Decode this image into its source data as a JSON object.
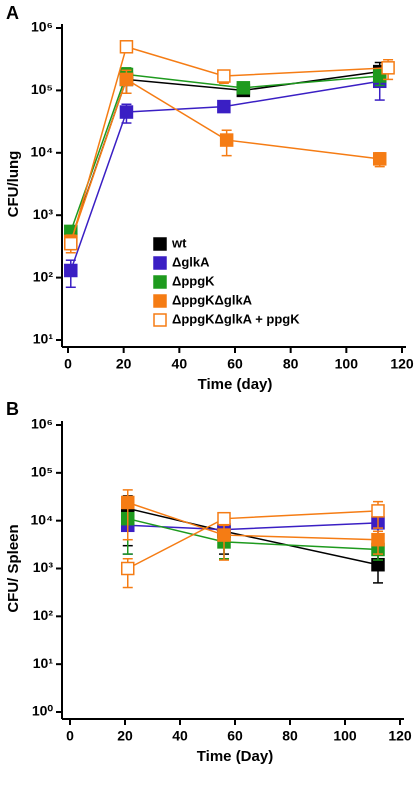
{
  "charts": [
    {
      "type": "line",
      "panel": "A",
      "ylog": true,
      "xlabel": "Time (day)",
      "ylabel": "CFU/lung",
      "xlim": [
        0,
        120
      ],
      "xticks": [
        0,
        20,
        40,
        60,
        80,
        100,
        120
      ],
      "ylim": [
        10,
        1000000
      ],
      "yticks": [
        {
          "value": 10,
          "label": "10¹"
        },
        {
          "value": 100,
          "label": "10²"
        },
        {
          "value": 1000,
          "label": "10³"
        },
        {
          "value": 10000,
          "label": "10⁴"
        },
        {
          "value": 100000,
          "label": "10⁵"
        },
        {
          "value": 1000000,
          "label": "10⁶"
        }
      ],
      "legend": "center",
      "series": [
        {
          "name": "wt",
          "color": "#000000",
          "filled": true,
          "x": [
            1,
            21,
            63,
            112
          ],
          "values": [
            400,
            150000,
            100000,
            200000
          ],
          "errors": [
            100,
            60000,
            15000,
            80000
          ]
        },
        {
          "name": "ΔglkA",
          "color": "#3a1fc4",
          "filled": true,
          "x": [
            1,
            21,
            56,
            112
          ],
          "values": [
            130,
            45000,
            55000,
            140000
          ],
          "errors": [
            60,
            15000,
            10000,
            70000
          ]
        },
        {
          "name": "ΔppgK",
          "color": "#1e9a1e",
          "filled": true,
          "x": [
            1,
            21,
            63,
            112
          ],
          "values": [
            550,
            180000,
            110000,
            170000
          ],
          "errors": [
            100,
            50000,
            20000,
            50000
          ]
        },
        {
          "name": "ΔppgKΔglkA",
          "color": "#f57c14",
          "filled": true,
          "x": [
            1,
            21,
            57,
            112
          ],
          "values": [
            380,
            150000,
            16000,
            8000
          ],
          "errors": [
            100,
            60000,
            7000,
            2000
          ]
        },
        {
          "name": "ΔppgKΔglkA + ppgK",
          "color": "#f57c14",
          "filled": false,
          "x": [
            1,
            21,
            56,
            115
          ],
          "values": [
            350,
            500000,
            170000,
            230000
          ],
          "errors": [
            100,
            80000,
            40000,
            80000
          ]
        }
      ]
    },
    {
      "type": "line",
      "panel": "B",
      "ylog": true,
      "xlabel": "Time (Day)",
      "ylabel": "CFU/ Spleen",
      "xlim": [
        0,
        120
      ],
      "xticks": [
        0,
        20,
        40,
        60,
        80,
        100,
        120
      ],
      "ylim": [
        1,
        1000000
      ],
      "yticks": [
        {
          "value": 1,
          "label": "10⁰"
        },
        {
          "value": 10,
          "label": "10¹"
        },
        {
          "value": 100,
          "label": "10²"
        },
        {
          "value": 1000,
          "label": "10³"
        },
        {
          "value": 10000,
          "label": "10⁴"
        },
        {
          "value": 100000,
          "label": "10⁵"
        },
        {
          "value": 1000000,
          "label": "10⁶"
        }
      ],
      "series": [
        {
          "color": "#000000",
          "filled": true,
          "x": [
            21,
            56,
            112
          ],
          "values": [
            18000,
            6000,
            1200
          ],
          "errors": [
            15000,
            4000,
            700
          ]
        },
        {
          "color": "#3a1fc4",
          "filled": true,
          "x": [
            21,
            56,
            112
          ],
          "values": [
            8000,
            6500,
            9000
          ],
          "errors": [
            6000,
            3000,
            5000
          ]
        },
        {
          "color": "#1e9a1e",
          "filled": true,
          "x": [
            21,
            56,
            112
          ],
          "values": [
            11000,
            3600,
            2500
          ],
          "errors": [
            9000,
            2000,
            1000
          ]
        },
        {
          "color": "#f57c14",
          "filled": true,
          "x": [
            21,
            56,
            112
          ],
          "values": [
            24000,
            5000,
            4000
          ],
          "errors": [
            20000,
            3500,
            2000
          ]
        },
        {
          "color": "#f57c14",
          "filled": false,
          "x": [
            21,
            56,
            112
          ],
          "values": [
            1000,
            11000,
            16000
          ],
          "errors": [
            600,
            3000,
            9000
          ]
        }
      ]
    }
  ]
}
